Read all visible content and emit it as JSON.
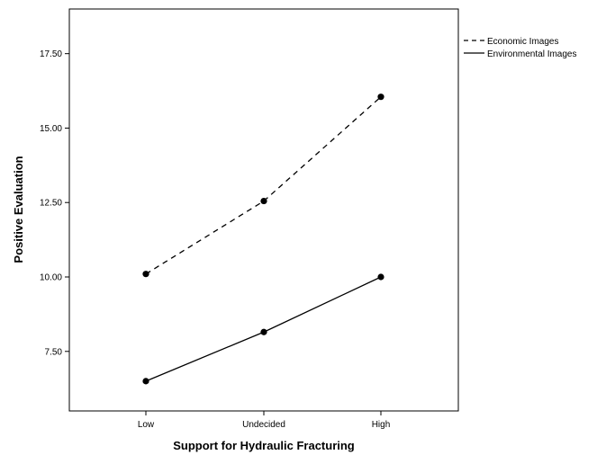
{
  "chart_data": {
    "type": "line",
    "title": "",
    "xlabel": "Support for Hydraulic Fracturing",
    "ylabel": "Positive Evaluation",
    "categories": [
      "Low",
      "Undecided",
      "High"
    ],
    "ylim": [
      5.5,
      19.0
    ],
    "yticks": [
      "7.50",
      "10.00",
      "12.50",
      "15.00",
      "17.50"
    ],
    "grid": false,
    "legend_position": "right, outside plot",
    "series": [
      {
        "name": "Economic Images",
        "values": [
          10.1,
          12.55,
          16.05
        ],
        "line_style": "dashed",
        "color": "#000000"
      },
      {
        "name": "Environmental Images",
        "values": [
          6.5,
          8.15,
          10.0
        ],
        "line_style": "solid",
        "color": "#000000"
      }
    ]
  }
}
